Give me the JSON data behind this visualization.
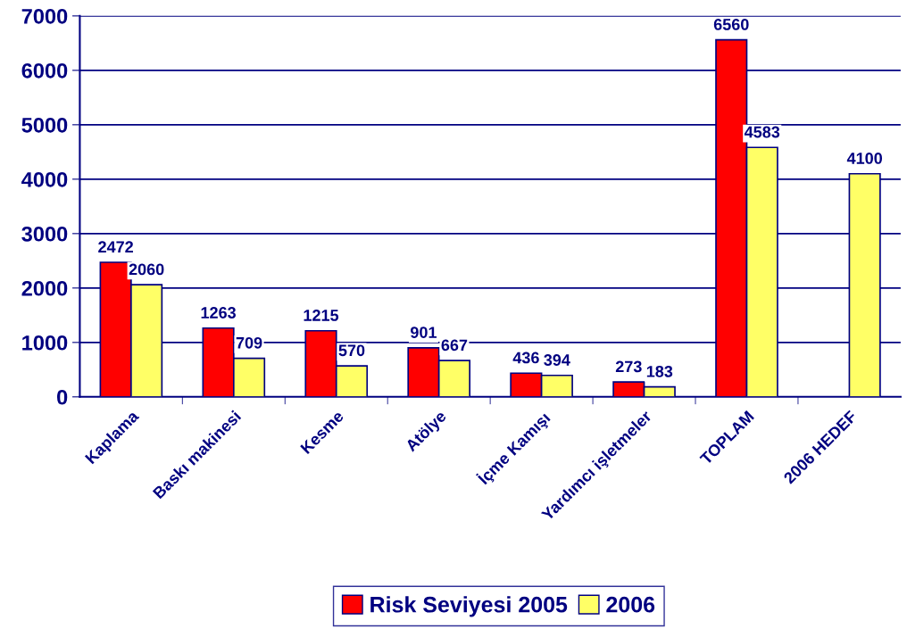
{
  "chart_data": {
    "type": "bar",
    "categories": [
      "Kaplama",
      "Baskı makinesi",
      "Kesme",
      "Atölye",
      "İçme Kamışı",
      "Yardımcı işletmeler",
      "TOPLAM",
      "2006 HEDEF"
    ],
    "series": [
      {
        "name": "Risk Seviyesi 2005",
        "color": "#ff0000",
        "values": [
          2472,
          1263,
          1215,
          901,
          436,
          273,
          6560,
          null
        ]
      },
      {
        "name": "2006",
        "color": "#ffff66",
        "values": [
          2060,
          709,
          570,
          667,
          394,
          183,
          4583,
          4100
        ]
      }
    ],
    "ylim": [
      0,
      7000
    ],
    "yticks": [
      0,
      1000,
      2000,
      3000,
      4000,
      5000,
      6000,
      7000
    ],
    "grid": "y",
    "legend": "bottom",
    "data_labels": true
  }
}
